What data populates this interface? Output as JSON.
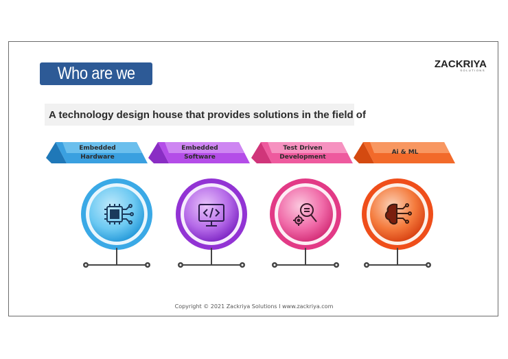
{
  "slide": {
    "title": "Who are we",
    "subtitle": "A technology design house that provides solutions in the field of",
    "footer": "Copyright © 2021 Zackriya Solutions I www.zackriya.com"
  },
  "logo": {
    "text": "ZACKRIYA",
    "sub": "SOLUTIONS"
  },
  "items": [
    {
      "label": "Embedded Hardware",
      "icon": "chip-icon",
      "color": "#3ab4e8"
    },
    {
      "label": "Embedded Software",
      "icon": "code-monitor-icon",
      "color": "#9b3fd6"
    },
    {
      "label": "Test Driven Development",
      "icon": "test-gear-icon",
      "color": "#e83c8c"
    },
    {
      "label": "Ai & ML",
      "icon": "brain-circuit-icon",
      "color": "#f0521e"
    }
  ]
}
